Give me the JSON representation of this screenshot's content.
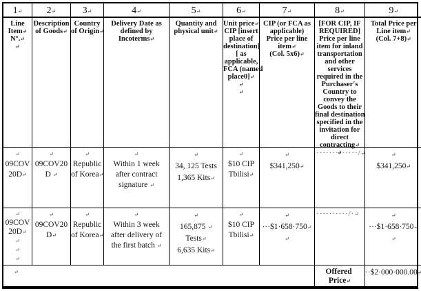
{
  "table": {
    "column_numbers": [
      "1↵",
      "2↵",
      "3↵",
      "4↵",
      "5↵",
      "6↵",
      "7↵",
      "8↵",
      "9↵"
    ],
    "headers": {
      "line_item": "Line\nItem↵\nN°.↵\n↵",
      "description": "Description\nof Goods↵",
      "country": "Country\nof Origin↵",
      "delivery": "Delivery Date as\ndefined by\nIncoterms↵",
      "quantity": "Quantity and\nphysical unit↵",
      "unit_price": "Unit price↵\nCIP [insert\nplace of\ndestination]\n[ as\napplicable,\nFCA (named\nplace0]↵\n↵\n↵",
      "cip_price": "CIP (or FCA as\napplicable)\nPrice per line\nitem↵\n(Col. 5x6)↵",
      "inland_price": "[FOR CIP, IF\nREQUIRED]\nPrice per line\nitem for inland\ntransportation\nand other\nservices\nrequired in the\nPurchaser's\nCountry to\nconvey the\nGoods to their\nfinal destination\nspecified in the\ninvitation for\ndirect\ncontracting↵\n↵",
      "total_price": "Total Price per\nLine item↵\n(Col. 7+8)↵"
    },
    "rows": [
      {
        "line_item": "↵\n09COV\n20D↵",
        "description": "↵\n09COV20\nD ↵",
        "country": "↵\nRepublic\nof Korea↵",
        "delivery": "↵\nWithin 1 week\nafter contract\nsignature ↵",
        "quantity": "↵\n34, 125 Tests\n1,365 Kits↵",
        "unit_price": "↵\n$10 CIP\nTbilisi↵",
        "cip_price": "↵\n$341,250↵",
        "inland_price": "·············/↵",
        "total_price": "↵\n$341,250↵"
      },
      {
        "line_item": "↵\n09COV\n20D↵\n↵\n↵\n↵",
        "description": "↵\n09COV20\nD↵",
        "country": "↵\nRepublic\nof Korea↵",
        "delivery": "↵\nWithin 3 week\nafter delivery of\nthe first batch ↵",
        "quantity": "↵\n165,875 ↵\nTests↵\n6,635 Kits↵",
        "unit_price": "↵\n$10 CIP\nTbilisi↵",
        "cip_price": "↵\n···$1·658·750↵\n↵",
        "inland_price": "··········/·↵",
        "total_price": "↵\n···$1·658·750↵\n↵"
      }
    ],
    "footer": {
      "left_mark": "↵",
      "label": "Offered \nPrice↵",
      "total": "··$2·000·000.00↵"
    }
  }
}
